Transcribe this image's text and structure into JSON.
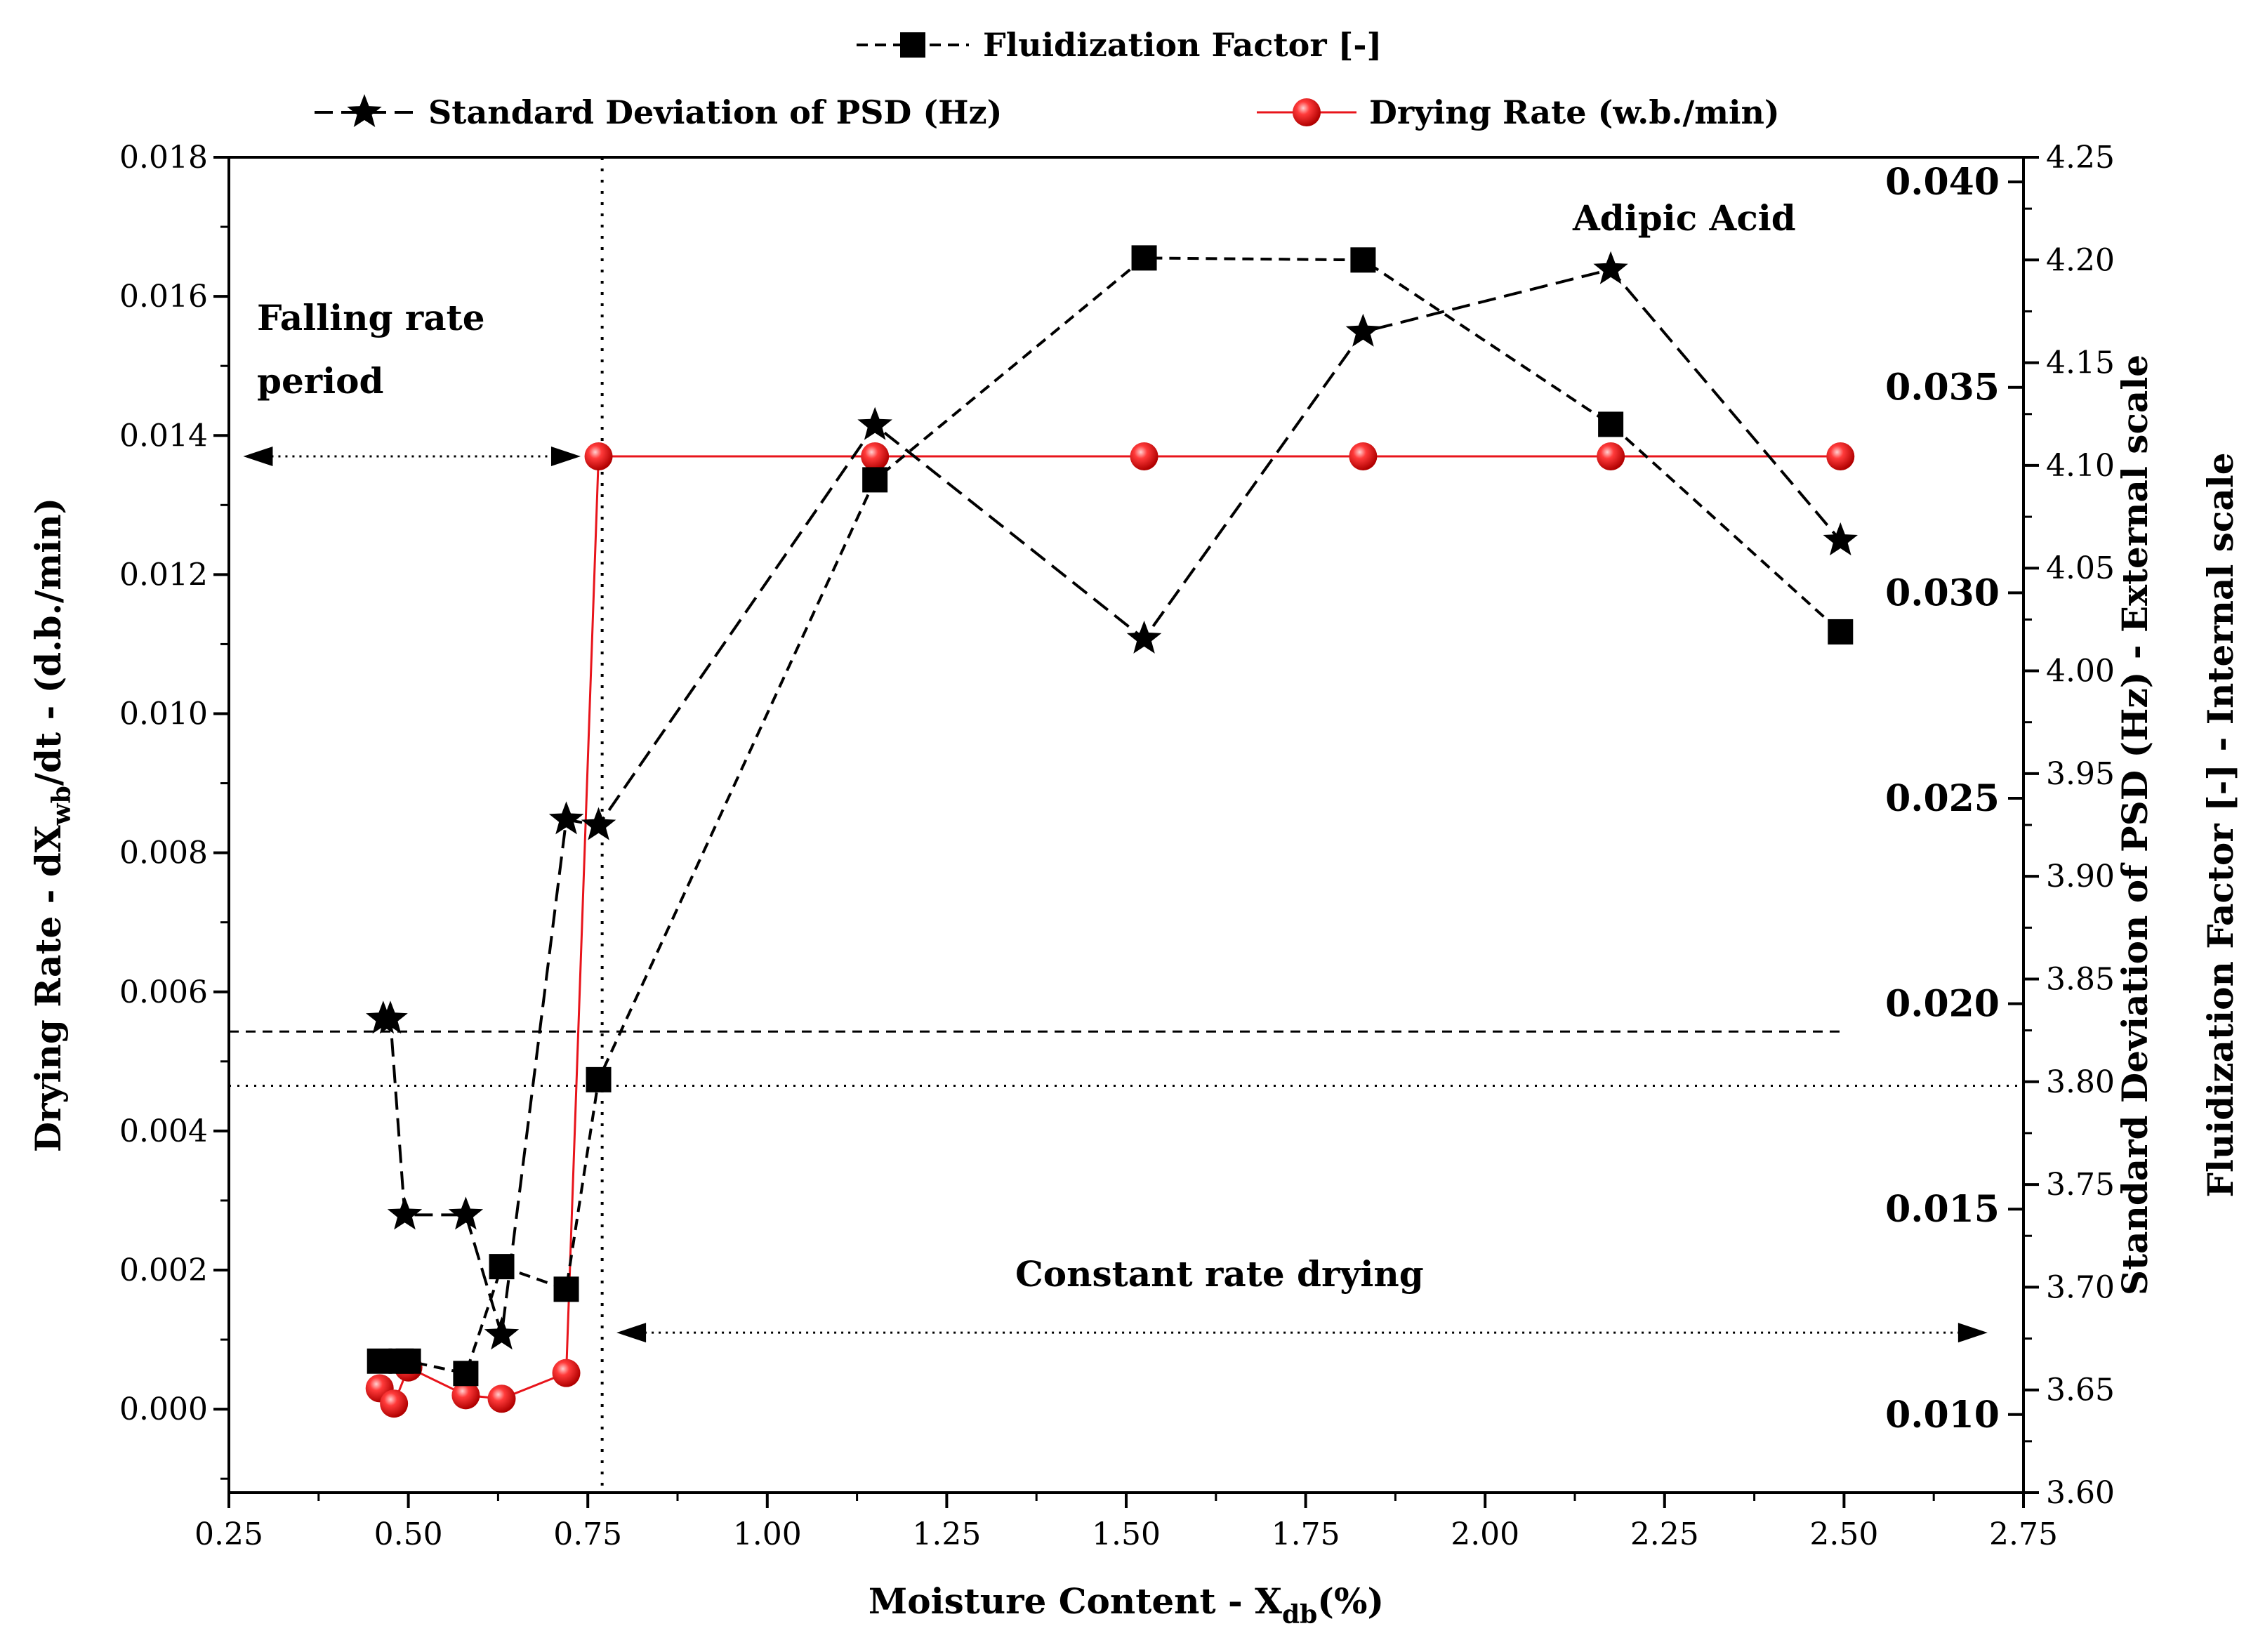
{
  "chart_data": {
    "type": "line",
    "title": "Adipic Acid",
    "xlabel": "Moisture Content - X",
    "xlabel_sub": "db",
    "xlabel_tail": "(%)",
    "ylabel": "Drying Rate - dX",
    "ylabel_sub": "wb",
    "ylabel_tail": "/dt - (d.b./min)",
    "y2label": "Standard Deviation of PSD (Hz) - External scale",
    "y3label": "Fluidization Factor [-] - Internal scale",
    "xlim": [
      0.25,
      2.75
    ],
    "ylim": [
      -0.0012,
      0.018
    ],
    "y2lim": [
      0.0081,
      0.0406
    ],
    "y3lim": [
      3.6,
      4.25
    ],
    "x_ticks": [
      "0.25",
      "0.50",
      "0.75",
      "1.00",
      "1.25",
      "1.50",
      "1.75",
      "2.00",
      "2.25",
      "2.50",
      "2.75"
    ],
    "y_ticks": [
      "0.000",
      "0.002",
      "0.004",
      "0.006",
      "0.008",
      "0.010",
      "0.012",
      "0.014",
      "0.016",
      "0.018"
    ],
    "y2_ticks": [
      "0.010",
      "0.015",
      "0.020",
      "0.025",
      "0.030",
      "0.035",
      "0.040"
    ],
    "y3_ticks": [
      "3.60",
      "3.65",
      "3.70",
      "3.75",
      "3.80",
      "3.85",
      "3.90",
      "3.95",
      "4.00",
      "4.05",
      "4.10",
      "4.15",
      "4.20",
      "4.25"
    ],
    "series": [
      {
        "name": "Fluidization Factor [-]",
        "axis": "y3",
        "marker": "square",
        "line": "dashed-short",
        "color": "#000000",
        "x": [
          0.46,
          0.49,
          0.5,
          0.58,
          0.63,
          0.72,
          0.765,
          1.15,
          1.525,
          1.83,
          2.175,
          2.495
        ],
        "y": [
          3.664,
          3.664,
          3.664,
          3.658,
          3.71,
          3.699,
          3.801,
          4.093,
          4.201,
          4.2,
          4.12,
          4.019
        ]
      },
      {
        "name": "Standard Deviation of PSD (Hz)",
        "axis": "y2",
        "marker": "star",
        "line": "dashed-long",
        "color": "#000000",
        "x": [
          0.465,
          0.475,
          0.495,
          0.58,
          0.63,
          0.72,
          0.765,
          1.15,
          1.525,
          1.83,
          2.175,
          2.495
        ],
        "y": [
          0.01963,
          0.01963,
          0.01486,
          0.01486,
          0.01194,
          0.02448,
          0.02434,
          0.03408,
          0.02888,
          0.03635,
          0.03787,
          0.03127
        ]
      },
      {
        "name": "Drying Rate (w.b./min)",
        "axis": "y",
        "marker": "circle",
        "line": "solid",
        "color": "#e8141b",
        "x": [
          0.46,
          0.48,
          0.5,
          0.58,
          0.63,
          0.72,
          0.765,
          1.15,
          1.525,
          1.83,
          2.175,
          2.495
        ],
        "y": [
          0.0003,
          8e-05,
          0.0006,
          0.0002,
          0.00015,
          0.00052,
          0.0137,
          0.0137,
          0.0137,
          0.0137,
          0.0137,
          0.0137
        ]
      }
    ],
    "reference_lines": {
      "vertical_x": 0.77,
      "horizontal_dashed_y": 0.00543,
      "horizontal_dotted_y": 0.00465
    },
    "annotations": {
      "falling_line1": "Falling rate",
      "falling_line2": "period",
      "constant": "Constant rate drying",
      "compound": "Adipic Acid",
      "falling_arrow_y": 0.0137,
      "falling_arrow_x": [
        0.27,
        0.74
      ],
      "constant_arrow_y": 0.0011,
      "constant_arrow_x": [
        0.79,
        2.7
      ]
    },
    "legend": [
      "Fluidization Factor [-]",
      "Standard Deviation of PSD (Hz)",
      "Drying Rate (w.b./min)"
    ],
    "legend_position": "top"
  }
}
